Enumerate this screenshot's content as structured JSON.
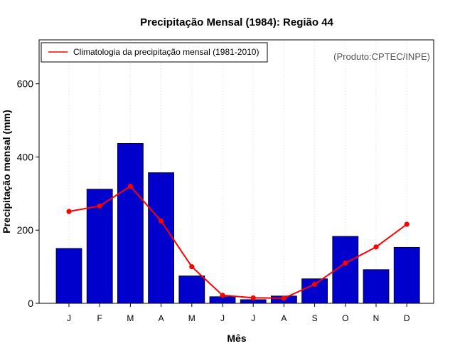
{
  "chart_data": {
    "type": "bar",
    "title": "Precipitação Mensal (1984): Região 44",
    "xlabel": "Mês",
    "ylabel": "Precipitação mensal (mm)",
    "ylim": [
      0,
      720
    ],
    "yticks": [
      0,
      200,
      400,
      600
    ],
    "categories": [
      "J",
      "F",
      "M",
      "A",
      "M",
      "J",
      "J",
      "A",
      "S",
      "O",
      "N",
      "D"
    ],
    "series": [
      {
        "name": "Precipitação mensal 1984",
        "type": "bar",
        "color": "#0000CC",
        "values": [
          150,
          312,
          437,
          357,
          75,
          18,
          10,
          20,
          67,
          183,
          92,
          153
        ]
      },
      {
        "name": "Climatologia da precipitação mensal (1981-2010)",
        "type": "line",
        "color": "#FF0000",
        "values": [
          251,
          266,
          320,
          225,
          100,
          22,
          15,
          14,
          52,
          110,
          154,
          216
        ]
      }
    ],
    "grid": "vertical-dotted",
    "legend_position": "top-left",
    "annotation": "(Produto:CPTEC/INPE)"
  }
}
